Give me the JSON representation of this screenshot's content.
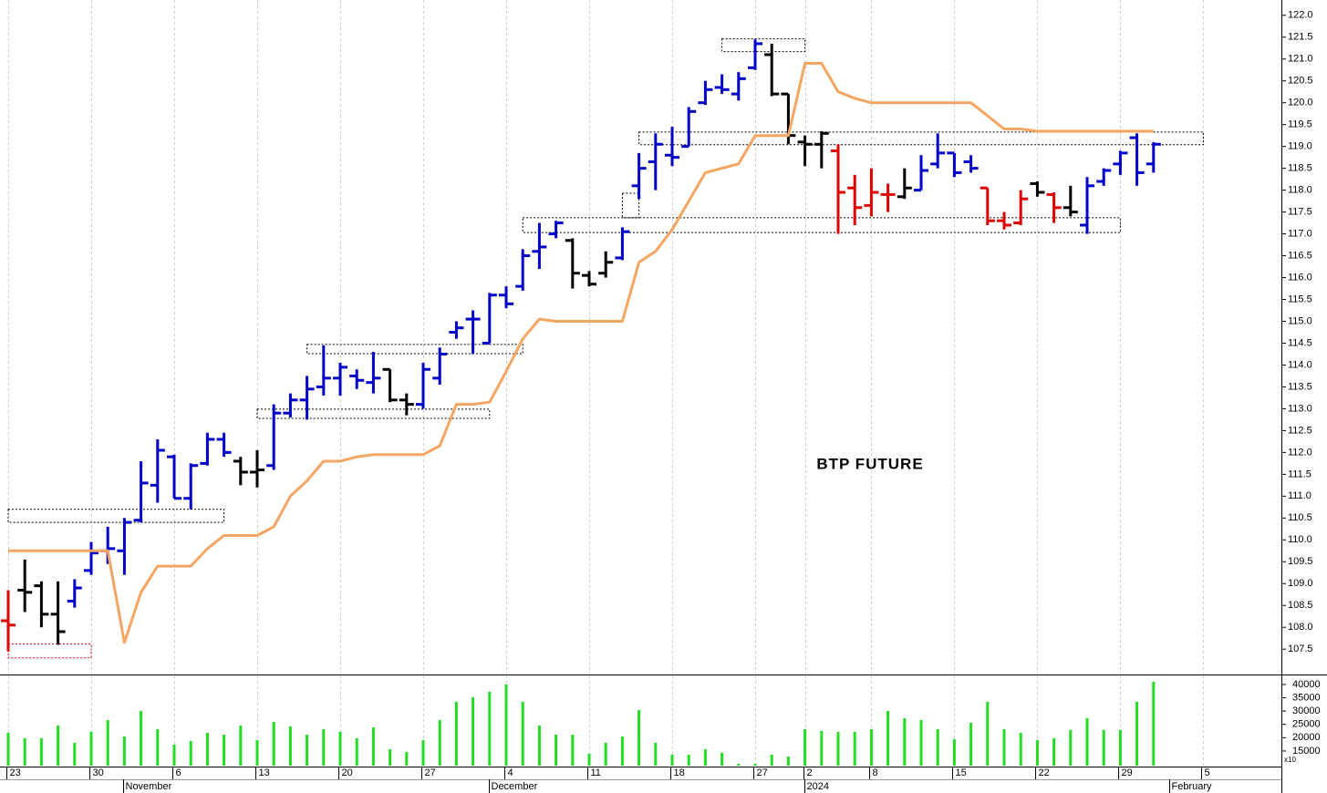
{
  "chart_data": {
    "type": "ohlc",
    "title": "BTP FUTURE",
    "categories": [
      "23",
      null,
      null,
      null,
      null,
      "30",
      null,
      null,
      null,
      null,
      "6",
      null,
      null,
      null,
      null,
      "13",
      null,
      null,
      null,
      null,
      "20",
      null,
      null,
      null,
      null,
      "27",
      null,
      null,
      null,
      null,
      "4",
      null,
      null,
      null,
      null,
      "11",
      null,
      null,
      null,
      null,
      "18",
      null,
      null,
      null,
      null,
      "27",
      null,
      null,
      "2",
      null,
      null,
      null,
      "8",
      null,
      null,
      null,
      null,
      "15",
      null,
      null,
      null,
      null,
      "22",
      null,
      null,
      null,
      null,
      "29",
      null,
      null,
      null,
      null,
      "5"
    ],
    "month_labels": [
      null,
      null,
      null,
      null,
      null,
      null,
      null,
      "November",
      null,
      null,
      null,
      null,
      null,
      null,
      null,
      null,
      null,
      null,
      null,
      null,
      null,
      null,
      null,
      null,
      null,
      null,
      null,
      null,
      null,
      "December",
      null,
      null,
      null,
      null,
      null,
      null,
      null,
      null,
      null,
      null,
      null,
      null,
      null,
      null,
      null,
      null,
      null,
      null,
      "2024",
      null,
      null,
      null,
      null,
      null,
      null,
      null,
      null,
      null,
      null,
      null,
      null,
      null,
      null,
      null,
      null,
      null,
      null,
      null,
      null,
      null,
      "February",
      null,
      null
    ],
    "open": [
      108.15,
      108.85,
      108.95,
      108.3,
      108.6,
      109.3,
      109.75,
      109.75,
      110.45,
      111.25,
      111.9,
      110.95,
      111.75,
      112.3,
      111.8,
      111.55,
      111.7,
      112.9,
      113.2,
      113.5,
      113.7,
      113.75,
      113.6,
      113.9,
      113.2,
      113.1,
      113.7,
      114.75,
      115.05,
      114.5,
      115.6,
      115.8,
      116.6,
      117.0,
      116.85,
      116.05,
      116.1,
      116.45,
      118.1,
      118.65,
      118.8,
      119.0,
      120.0,
      120.35,
      120.2,
      120.8,
      121.1,
      120.2,
      119.1,
      119.05,
      118.9,
      118.05,
      117.65,
      117.9,
      117.85,
      118.0,
      118.6,
      118.85,
      118.65,
      118.05,
      117.3,
      117.25,
      118.15,
      117.9,
      117.6,
      117.2,
      118.2,
      118.6,
      119.2,
      118.6,
      null,
      null,
      null
    ],
    "high": [
      108.85,
      109.55,
      109.05,
      109.05,
      109.1,
      109.95,
      110.3,
      110.5,
      111.8,
      112.3,
      111.95,
      111.75,
      112.45,
      112.45,
      111.9,
      112.05,
      113.1,
      113.35,
      113.75,
      114.45,
      114.05,
      113.9,
      114.3,
      113.9,
      113.35,
      114.05,
      114.4,
      115.0,
      115.25,
      115.65,
      115.8,
      116.65,
      117.25,
      117.3,
      116.9,
      116.15,
      116.6,
      117.15,
      118.85,
      119.3,
      119.45,
      119.9,
      120.5,
      120.65,
      120.7,
      121.45,
      121.35,
      120.2,
      119.25,
      119.35,
      119.05,
      118.35,
      118.5,
      118.15,
      118.5,
      118.8,
      119.3,
      118.85,
      118.8,
      118.05,
      117.5,
      118.0,
      118.2,
      117.95,
      118.1,
      118.3,
      118.5,
      118.9,
      119.3,
      119.1,
      null,
      null,
      null
    ],
    "low": [
      107.45,
      108.35,
      108.0,
      107.6,
      108.45,
      109.2,
      109.45,
      109.2,
      110.4,
      110.85,
      110.95,
      110.7,
      111.7,
      111.9,
      111.25,
      111.2,
      111.6,
      112.8,
      112.75,
      113.3,
      113.3,
      113.45,
      113.35,
      113.15,
      112.85,
      113.0,
      113.55,
      114.6,
      114.25,
      114.5,
      115.3,
      115.7,
      116.2,
      116.9,
      115.75,
      115.8,
      116.0,
      116.4,
      117.8,
      118.0,
      118.55,
      119.0,
      119.95,
      120.2,
      120.05,
      120.75,
      120.15,
      119.05,
      118.55,
      118.5,
      117.0,
      117.2,
      117.4,
      117.5,
      117.8,
      118.0,
      118.5,
      118.3,
      118.4,
      117.2,
      117.1,
      117.2,
      117.85,
      117.25,
      117.4,
      117.0,
      118.1,
      118.35,
      118.1,
      118.4,
      null,
      null,
      null
    ],
    "close": [
      108.05,
      108.8,
      108.3,
      107.9,
      108.9,
      109.7,
      109.8,
      110.4,
      111.3,
      112.05,
      110.95,
      111.7,
      112.3,
      112.0,
      111.55,
      111.6,
      112.9,
      113.2,
      113.45,
      113.7,
      113.95,
      113.65,
      113.7,
      113.2,
      113.1,
      113.9,
      114.25,
      114.85,
      115.05,
      115.6,
      115.4,
      116.5,
      116.7,
      117.25,
      116.1,
      115.85,
      116.35,
      117.05,
      118.5,
      119.05,
      118.75,
      119.8,
      120.3,
      120.3,
      120.55,
      121.35,
      120.2,
      119.25,
      119.05,
      119.3,
      117.95,
      117.6,
      117.95,
      117.9,
      118.05,
      118.45,
      118.85,
      118.4,
      118.5,
      117.3,
      117.2,
      117.8,
      117.95,
      117.6,
      117.5,
      118.1,
      118.45,
      118.85,
      118.4,
      119.05,
      null,
      null,
      null
    ],
    "bar_colors": [
      "#e00000",
      "#000000",
      "#000000",
      "#000000",
      "#0000c8",
      "#0000c8",
      "#0000c8",
      "#0000c8",
      "#0000c8",
      "#0000c8",
      "#0000c8",
      "#0000c8",
      "#0000c8",
      "#0000c8",
      "#000000",
      "#000000",
      "#0000c8",
      "#0000c8",
      "#0000c8",
      "#0000c8",
      "#0000c8",
      "#0000c8",
      "#0000c8",
      "#000000",
      "#000000",
      "#0000c8",
      "#0000c8",
      "#0000c8",
      "#0000c8",
      "#0000c8",
      "#0000c8",
      "#0000c8",
      "#0000c8",
      "#0000c8",
      "#000000",
      "#000000",
      "#000000",
      "#0000c8",
      "#0000c8",
      "#0000c8",
      "#0000c8",
      "#0000c8",
      "#0000c8",
      "#0000c8",
      "#0000c8",
      "#0000c8",
      "#000000",
      "#000000",
      "#000000",
      "#000000",
      "#e00000",
      "#e00000",
      "#e00000",
      "#e00000",
      "#000000",
      "#0000c8",
      "#0000c8",
      "#0000c8",
      "#0000c8",
      "#e00000",
      "#e00000",
      "#e00000",
      "#000000",
      "#e00000",
      "#000000",
      "#0000c8",
      "#0000c8",
      "#0000c8",
      "#0000c8",
      "#0000c8",
      null,
      null,
      null
    ],
    "line": {
      "color": "#f5a562",
      "values": [
        109.75,
        109.75,
        109.75,
        109.75,
        109.75,
        109.75,
        109.75,
        107.65,
        108.8,
        109.4,
        109.4,
        109.4,
        109.8,
        110.1,
        110.1,
        110.1,
        110.3,
        111.0,
        111.35,
        111.8,
        111.8,
        111.9,
        111.95,
        111.95,
        111.95,
        111.95,
        112.15,
        113.1,
        113.1,
        113.15,
        113.85,
        114.6,
        115.05,
        115.0,
        115.0,
        115.0,
        115.0,
        115.0,
        116.35,
        116.6,
        117.1,
        117.75,
        118.4,
        118.5,
        118.6,
        119.25,
        119.25,
        119.25,
        120.9,
        120.9,
        120.25,
        120.1,
        120.0,
        120.0,
        120.0,
        120.0,
        120.0,
        120.0,
        120.0,
        119.7,
        119.4,
        119.4,
        119.35,
        119.35,
        119.35,
        119.35,
        119.35,
        119.35,
        119.35,
        119.35,
        null,
        null,
        null
      ]
    },
    "zones": [
      {
        "from": 0,
        "to": 5,
        "low": 107.3,
        "high": 107.62,
        "color": "#e00000"
      },
      {
        "from": 0,
        "to": 13,
        "low": 110.4,
        "high": 110.7,
        "color": "#000000"
      },
      {
        "from": 15,
        "to": 29,
        "low": 112.78,
        "high": 112.99,
        "color": "#000000"
      },
      {
        "from": 18,
        "to": 31,
        "low": 114.26,
        "high": 114.47,
        "color": "#000000"
      },
      {
        "from": 31,
        "to": 67,
        "low": 117.03,
        "high": 117.37,
        "color": "#000000"
      },
      {
        "from": 37,
        "to": 38,
        "low": 117.37,
        "high": 117.93,
        "color": "#000000"
      },
      {
        "from": 38,
        "to": 72,
        "low": 119.04,
        "high": 119.33,
        "color": "#000000"
      },
      {
        "from": 43,
        "to": 48,
        "low": 121.17,
        "high": 121.46,
        "color": "#000000"
      }
    ],
    "ylim": [
      106.92,
      122.35
    ],
    "yticks": [
      107.5,
      {
        "value": 108,
        "label": "108.0"
      },
      108.5,
      {
        "value": 109,
        "label": "109.0"
      },
      109.5,
      {
        "value": 110,
        "label": "110.0"
      },
      110.5,
      {
        "value": 111,
        "label": "111.0"
      },
      111.5,
      {
        "value": 112,
        "label": "112.0"
      },
      112.5,
      {
        "value": 113,
        "label": "113.0"
      },
      113.5,
      {
        "value": 114,
        "label": "114.0"
      },
      114.5,
      {
        "value": 115,
        "label": "115.0"
      },
      115.5,
      {
        "value": 116,
        "label": "116.0"
      },
      116.5,
      {
        "value": 117,
        "label": "117.0"
      },
      117.5,
      {
        "value": 118,
        "label": "118.0"
      },
      118.5,
      {
        "value": 119,
        "label": "119.0"
      },
      119.5,
      {
        "value": 120,
        "label": "120.0"
      },
      120.5,
      {
        "value": 121,
        "label": "121.0"
      },
      121.5,
      {
        "value": 122,
        "label": "122.0"
      }
    ],
    "grid": true,
    "volume": {
      "color": "#22dd22",
      "unit_label": "x10",
      "values": [
        21850,
        19800,
        19800,
        24600,
        18100,
        22200,
        26650,
        20500,
        30050,
        23200,
        17400,
        18750,
        21850,
        21150,
        24600,
        19100,
        25950,
        24250,
        21150,
        23200,
        22200,
        19800,
        23900,
        15700,
        14650,
        19100,
        26650,
        33500,
        35200,
        37250,
        40000,
        33500,
        24600,
        21150,
        21150,
        13950,
        18100,
        20500,
        30400,
        18100,
        13650,
        13650,
        15700,
        14350,
        10200,
        10200,
        13650,
        12950,
        23200,
        22550,
        22200,
        22200,
        23200,
        30050,
        27350,
        26650,
        23200,
        19450,
        25600,
        33500,
        23200,
        21850,
        19100,
        19800,
        22900,
        27350,
        22900,
        22900,
        33500,
        41050,
        null,
        null,
        null
      ],
      "ylim": [
        9500,
        43400
      ],
      "yticks": [
        15000,
        20000,
        25000,
        30000,
        35000,
        40000
      ]
    }
  }
}
